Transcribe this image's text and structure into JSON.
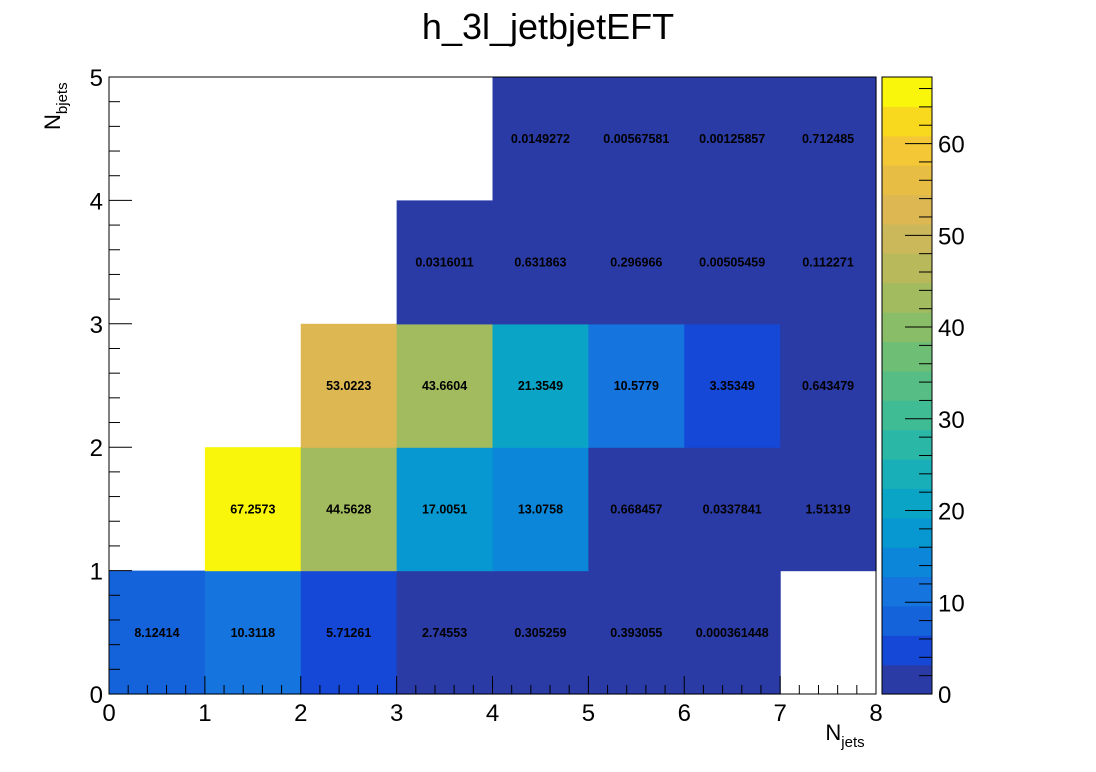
{
  "chart_data": {
    "type": "heatmap",
    "title": "h_3l_jetbjetEFT",
    "xlabel": {
      "main": "N",
      "sub": "jets"
    },
    "ylabel": {
      "main": "N",
      "sub": "bjets"
    },
    "xlim": [
      0,
      8
    ],
    "ylim": [
      0,
      5
    ],
    "x_ticks": [
      "0",
      "1",
      "2",
      "3",
      "4",
      "5",
      "6",
      "7",
      "8"
    ],
    "y_ticks": [
      "0",
      "1",
      "2",
      "3",
      "4",
      "5"
    ],
    "z_range": [
      0,
      67.2573
    ],
    "colorbar_ticks": [
      "0",
      "10",
      "20",
      "30",
      "40",
      "50",
      "60"
    ],
    "colorbar_tick_values": [
      0,
      10,
      20,
      30,
      40,
      50,
      60
    ],
    "palette": [
      "#2a3ba6",
      "#1548d6",
      "#1563db",
      "#1574dd",
      "#0b86d8",
      "#0798d1",
      "#0aa5c6",
      "#19afb8",
      "#2ab7a6",
      "#40bc95",
      "#56be85",
      "#6fbe76",
      "#8abd68",
      "#a2bb5f",
      "#b7b95b",
      "#cbb85b",
      "#dcb752",
      "#e8bd43",
      "#f3c735",
      "#f8d91d",
      "#f9f50b"
    ],
    "cells": [
      {
        "x": 0.5,
        "y": 0.5,
        "value": 8.12414,
        "label": "8.12414"
      },
      {
        "x": 1.5,
        "y": 0.5,
        "value": 10.3118,
        "label": "10.3118"
      },
      {
        "x": 2.5,
        "y": 0.5,
        "value": 5.71261,
        "label": "5.71261"
      },
      {
        "x": 3.5,
        "y": 0.5,
        "value": 2.74553,
        "label": "2.74553"
      },
      {
        "x": 4.5,
        "y": 0.5,
        "value": 0.305259,
        "label": "0.305259"
      },
      {
        "x": 5.5,
        "y": 0.5,
        "value": 0.393055,
        "label": "0.393055"
      },
      {
        "x": 6.5,
        "y": 0.5,
        "value": 0.000361448,
        "label": "0.000361448"
      },
      {
        "x": 1.5,
        "y": 1.5,
        "value": 67.2573,
        "label": "67.2573"
      },
      {
        "x": 2.5,
        "y": 1.5,
        "value": 44.5628,
        "label": "44.5628"
      },
      {
        "x": 3.5,
        "y": 1.5,
        "value": 17.0051,
        "label": "17.0051"
      },
      {
        "x": 4.5,
        "y": 1.5,
        "value": 13.0758,
        "label": "13.0758"
      },
      {
        "x": 5.5,
        "y": 1.5,
        "value": 0.668457,
        "label": "0.668457"
      },
      {
        "x": 6.5,
        "y": 1.5,
        "value": 0.0337841,
        "label": "0.0337841"
      },
      {
        "x": 7.5,
        "y": 1.5,
        "value": 1.51319,
        "label": "1.51319"
      },
      {
        "x": 2.5,
        "y": 2.5,
        "value": 53.0223,
        "label": "53.0223"
      },
      {
        "x": 3.5,
        "y": 2.5,
        "value": 43.6604,
        "label": "43.6604"
      },
      {
        "x": 4.5,
        "y": 2.5,
        "value": 21.3549,
        "label": "21.3549"
      },
      {
        "x": 5.5,
        "y": 2.5,
        "value": 10.5779,
        "label": "10.5779"
      },
      {
        "x": 6.5,
        "y": 2.5,
        "value": 3.35349,
        "label": "3.35349"
      },
      {
        "x": 7.5,
        "y": 2.5,
        "value": 0.643479,
        "label": "0.643479"
      },
      {
        "x": 3.5,
        "y": 3.5,
        "value": 0.0316011,
        "label": "0.0316011"
      },
      {
        "x": 4.5,
        "y": 3.5,
        "value": 0.631863,
        "label": "0.631863"
      },
      {
        "x": 5.5,
        "y": 3.5,
        "value": 0.296966,
        "label": "0.296966"
      },
      {
        "x": 6.5,
        "y": 3.5,
        "value": 0.00505459,
        "label": "0.00505459"
      },
      {
        "x": 7.5,
        "y": 3.5,
        "value": 0.112271,
        "label": "0.112271"
      },
      {
        "x": 4.5,
        "y": 4.5,
        "value": 0.0149272,
        "label": "0.0149272"
      },
      {
        "x": 5.5,
        "y": 4.5,
        "value": 0.00567581,
        "label": "0.00567581"
      },
      {
        "x": 6.5,
        "y": 4.5,
        "value": 0.00125857,
        "label": "0.00125857"
      },
      {
        "x": 7.5,
        "y": 4.5,
        "value": 0.712485,
        "label": "0.712485"
      }
    ]
  }
}
